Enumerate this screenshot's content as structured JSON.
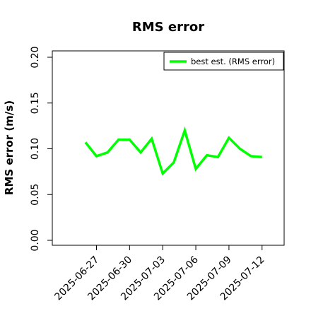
{
  "chart_data": {
    "type": "line",
    "title": "RMS error",
    "xlabel": "",
    "ylabel": "RMS error (m/s)",
    "ylim": [
      0,
      0.2
    ],
    "yticks": [
      "0.00",
      "0.05",
      "0.10",
      "0.15",
      "0.20"
    ],
    "ytick_values": [
      0,
      0.05,
      0.1,
      0.15,
      0.2
    ],
    "xlim": [
      "2025-06-23",
      "2025-07-14"
    ],
    "xticks": [
      "2025-06-27",
      "2025-06-30",
      "2025-07-03",
      "2025-07-06",
      "2025-07-09",
      "2025-07-12"
    ],
    "highlighted_xtick": "2025-07-03",
    "highlight_color": "#228B22",
    "grid": false,
    "legend_position": "top-right",
    "series": [
      {
        "name": "best est. (RMS error)",
        "color": "#00ff00",
        "x": [
          "2025-06-26",
          "2025-06-27",
          "2025-06-28",
          "2025-06-29",
          "2025-06-30",
          "2025-07-01",
          "2025-07-02",
          "2025-07-03",
          "2025-07-04",
          "2025-07-05",
          "2025-07-06",
          "2025-07-07",
          "2025-07-08",
          "2025-07-09",
          "2025-07-10",
          "2025-07-11",
          "2025-07-12"
        ],
        "y": [
          0.107,
          0.092,
          0.096,
          0.11,
          0.11,
          0.096,
          0.111,
          0.073,
          0.085,
          0.12,
          0.078,
          0.093,
          0.091,
          0.112,
          0.1,
          0.092,
          0.091
        ]
      }
    ]
  }
}
